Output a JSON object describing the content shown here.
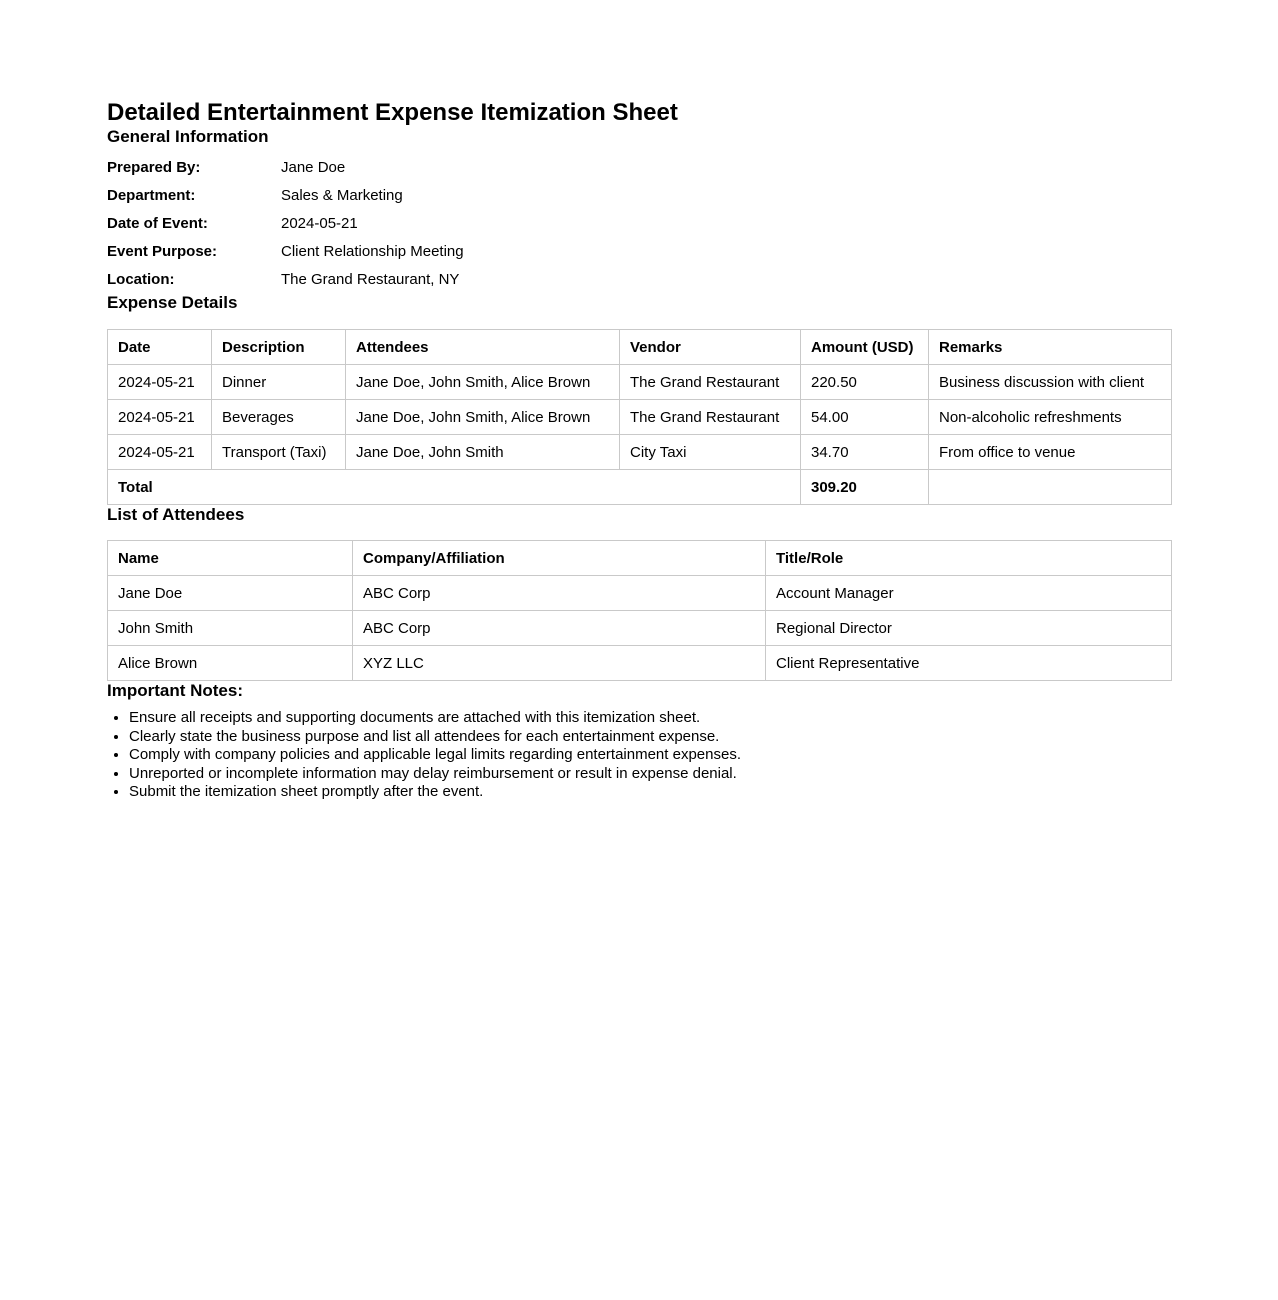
{
  "page": {
    "title": "Detailed Entertainment Expense Itemization Sheet"
  },
  "general_info": {
    "heading": "General Information",
    "fields": [
      {
        "label": "Prepared By:",
        "value": "Jane Doe"
      },
      {
        "label": "Department:",
        "value": "Sales & Marketing"
      },
      {
        "label": "Date of Event:",
        "value": "2024-05-21"
      },
      {
        "label": "Event Purpose:",
        "value": "Client Relationship Meeting"
      },
      {
        "label": "Location:",
        "value": "The Grand Restaurant, NY"
      }
    ]
  },
  "expense_details": {
    "heading": "Expense Details",
    "columns": [
      "Date",
      "Description",
      "Attendees",
      "Vendor",
      "Amount (USD)",
      "Remarks"
    ],
    "rows": [
      [
        "2024-05-21",
        "Dinner",
        "Jane Doe, John Smith, Alice Brown",
        "The Grand Restaurant",
        "220.50",
        "Business discussion with client"
      ],
      [
        "2024-05-21",
        "Beverages",
        "Jane Doe, John Smith, Alice Brown",
        "The Grand Restaurant",
        "54.00",
        "Non-alcoholic refreshments"
      ],
      [
        "2024-05-21",
        "Transport (Taxi)",
        "Jane Doe, John Smith",
        "City Taxi",
        "34.70",
        "From office to venue"
      ]
    ],
    "total_label": "Total",
    "total_value": "309.20"
  },
  "attendees": {
    "heading": "List of Attendees",
    "columns": [
      "Name",
      "Company/Affiliation",
      "Title/Role"
    ],
    "rows": [
      [
        "Jane Doe",
        "ABC Corp",
        "Account Manager"
      ],
      [
        "John Smith",
        "ABC Corp",
        "Regional Director"
      ],
      [
        "Alice Brown",
        "XYZ LLC",
        "Client Representative"
      ]
    ]
  },
  "notes": {
    "heading": "Important Notes:",
    "items": [
      "Ensure all receipts and supporting documents are attached with this itemization sheet.",
      "Clearly state the business purpose and list all attendees for each entertainment expense.",
      "Comply with company policies and applicable legal limits regarding entertainment expenses.",
      "Unreported or incomplete information may delay reimbursement or result in expense denial.",
      "Submit the itemization sheet promptly after the event."
    ]
  }
}
